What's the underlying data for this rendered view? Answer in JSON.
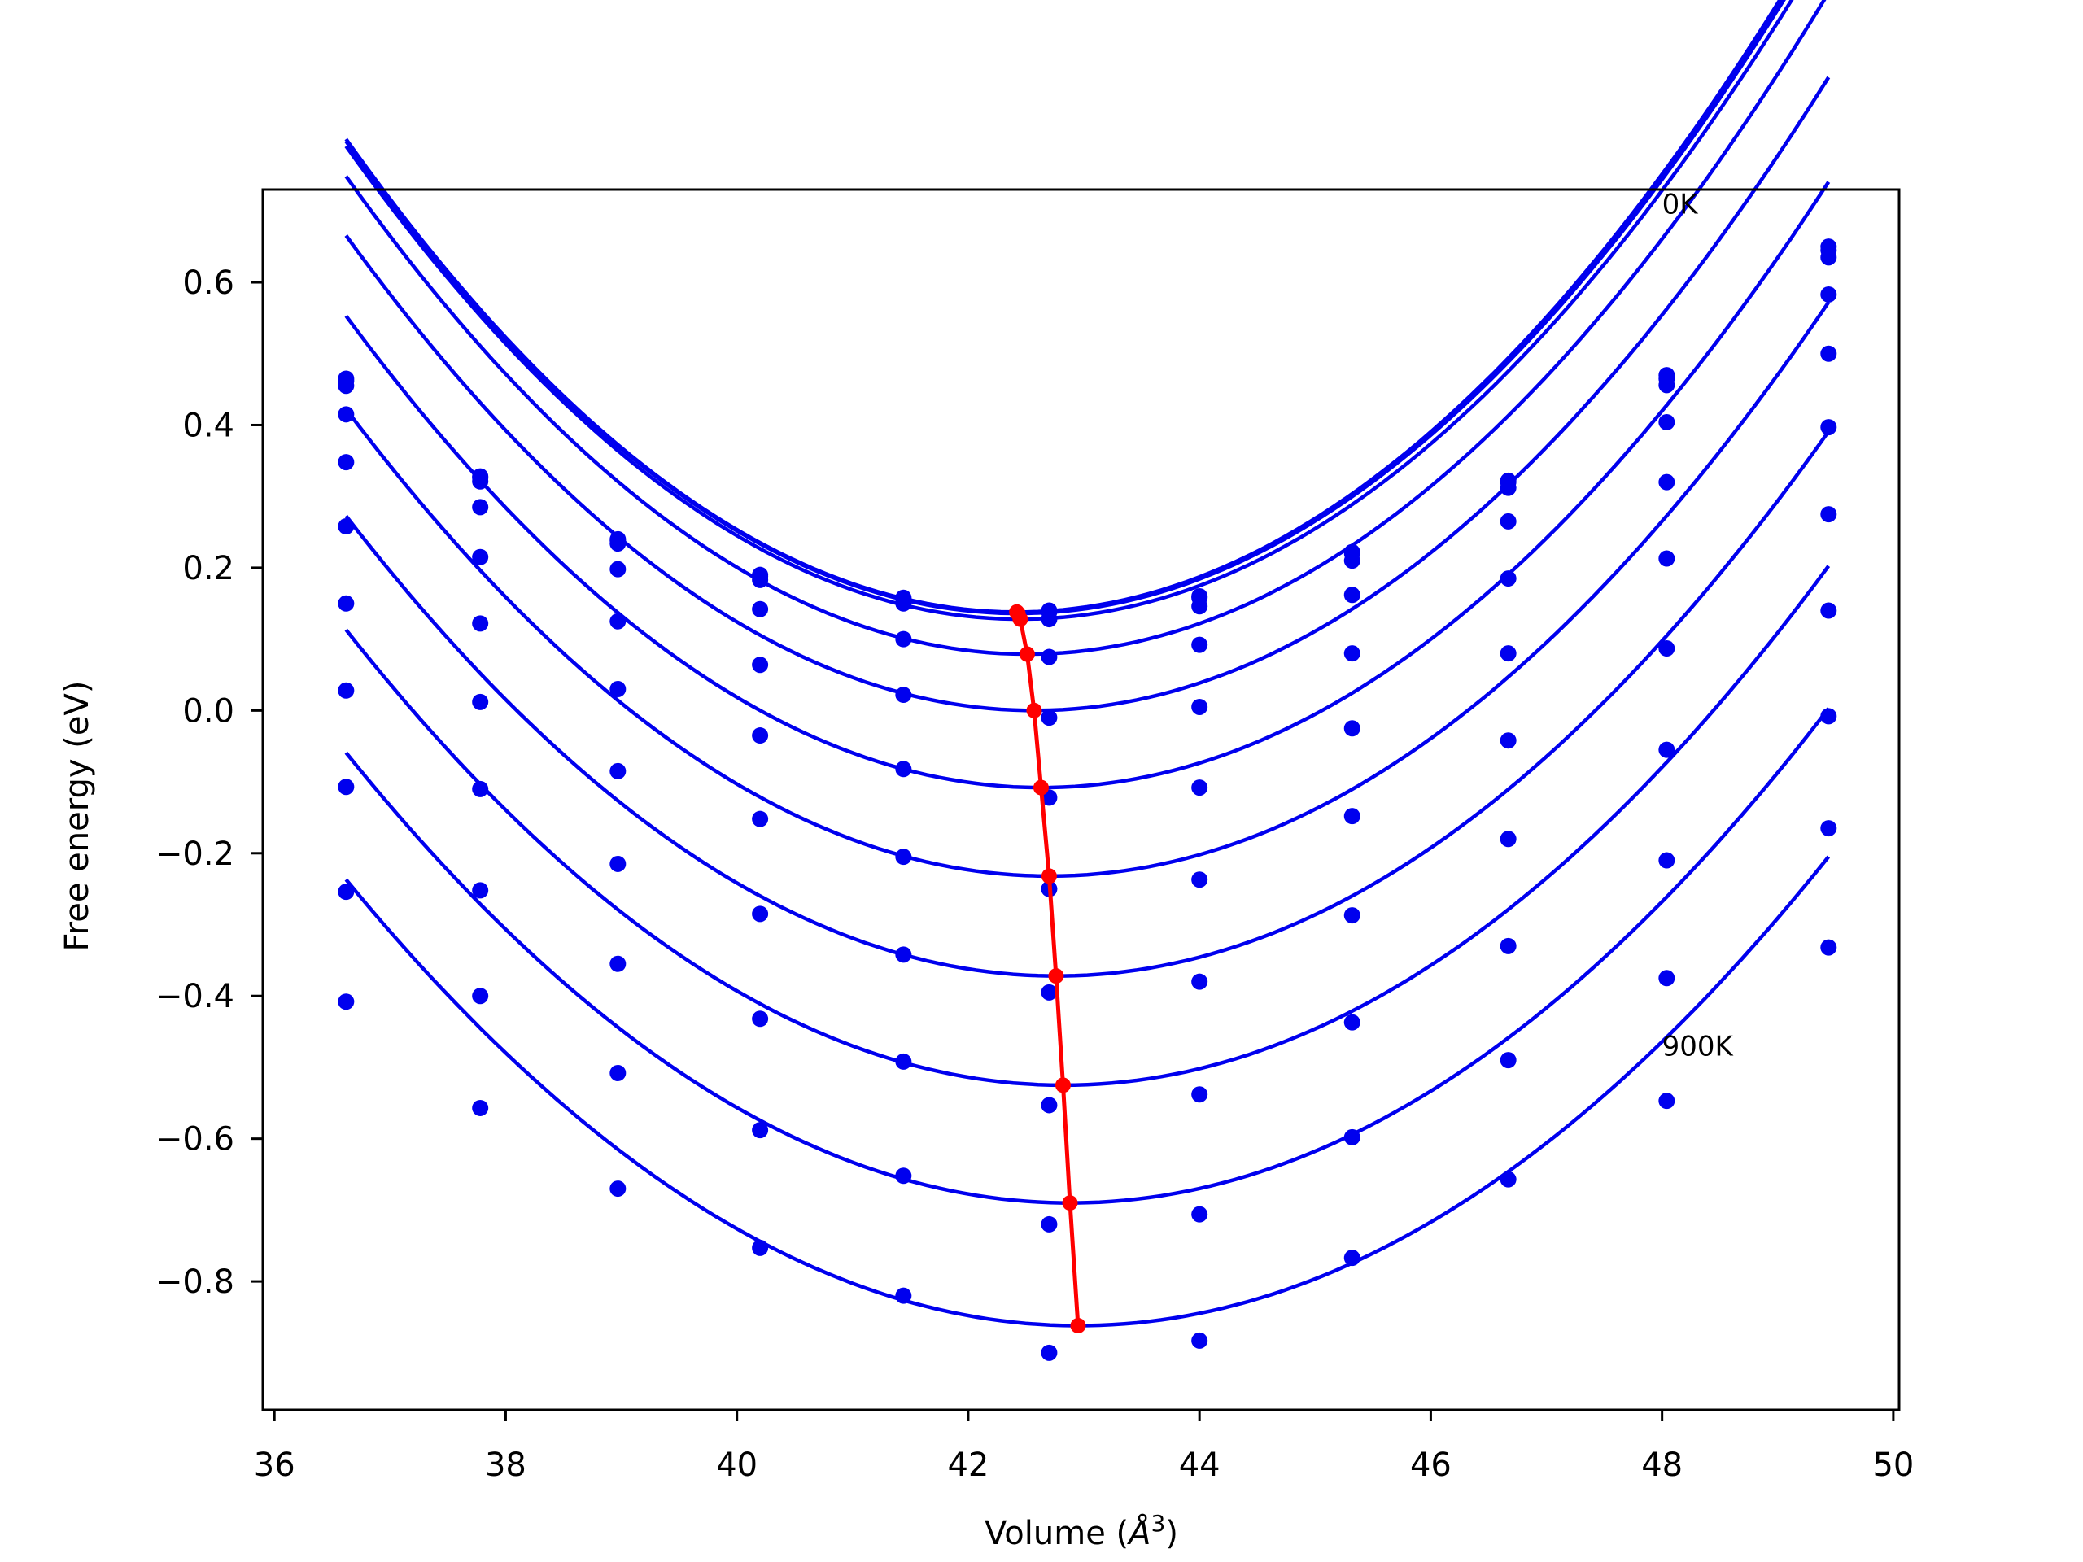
{
  "chart_data": {
    "type": "line",
    "xlabel": "Volume (",
    "xlabel_unit_symbol": "Å",
    "xlabel_unit_power": "3",
    "xlabel_suffix": ")",
    "ylabel": "Free energy (eV)",
    "xlim": [
      35.9,
      50.05
    ],
    "ylim": [
      -0.98,
      0.73
    ],
    "xticks": [
      36,
      38,
      40,
      42,
      44,
      46,
      48,
      50
    ],
    "xtick_labels": [
      "36",
      "38",
      "40",
      "42",
      "44",
      "46",
      "48",
      "50"
    ],
    "yticks": [
      0.6,
      0.4,
      0.2,
      0.0,
      -0.2,
      -0.4,
      -0.6,
      -0.8
    ],
    "ytick_labels": [
      "0.6",
      "0.4",
      "0.2",
      "0.0",
      "−0.2",
      "−0.4",
      "−0.6",
      "−0.8"
    ],
    "grid": false,
    "annotations": [
      {
        "text": "0K",
        "x": 48.0,
        "y": 0.71
      },
      {
        "text": "900K",
        "x": 48.0,
        "y": -0.47
      }
    ],
    "volumes": [
      36.62,
      37.78,
      38.97,
      40.2,
      41.44,
      42.7,
      44.0,
      45.32,
      46.67,
      48.04,
      49.44
    ],
    "series": [
      {
        "points": [
          0.465,
          0.328,
          0.24,
          0.19,
          0.158,
          0.14,
          0.16,
          0.222,
          0.322,
          0.47,
          0.65
        ],
        "fit": {
          "v0": 42.42,
          "e0": 0.138,
          "a": 0.0197
        }
      },
      {
        "points": [
          0.462,
          0.326,
          0.238,
          0.188,
          0.156,
          0.138,
          0.158,
          0.22,
          0.32,
          0.465,
          0.645
        ],
        "fit": {
          "v0": 42.43,
          "e0": 0.136,
          "a": 0.0196
        }
      },
      {
        "points": [
          0.455,
          0.321,
          0.234,
          0.183,
          0.15,
          0.128,
          0.146,
          0.21,
          0.312,
          0.456,
          0.635
        ],
        "fit": {
          "v0": 42.45,
          "e0": 0.128,
          "a": 0.0195
        }
      },
      {
        "points": [
          0.415,
          0.285,
          0.198,
          0.142,
          0.1,
          0.075,
          0.092,
          0.162,
          0.265,
          0.404,
          0.583
        ],
        "fit": {
          "v0": 42.51,
          "e0": 0.079,
          "a": 0.0193
        }
      },
      {
        "points": [
          0.348,
          0.215,
          0.125,
          0.064,
          0.022,
          -0.01,
          0.005,
          0.08,
          0.185,
          0.32,
          0.5
        ],
        "fit": {
          "v0": 42.57,
          "e0": 0.0,
          "a": 0.0188
        }
      },
      {
        "points": [
          0.258,
          0.122,
          0.03,
          -0.035,
          -0.082,
          -0.122,
          -0.108,
          -0.025,
          0.08,
          0.213,
          0.397
        ],
        "fit": {
          "v0": 42.63,
          "e0": -0.108,
          "a": 0.0183
        }
      },
      {
        "points": [
          0.15,
          0.012,
          -0.085,
          -0.152,
          -0.205,
          -0.25,
          -0.237,
          -0.148,
          -0.042,
          0.087,
          0.275
        ],
        "fit": {
          "v0": 42.7,
          "e0": -0.232,
          "a": 0.0177
        }
      },
      {
        "points": [
          0.028,
          -0.11,
          -0.215,
          -0.285,
          -0.342,
          -0.395,
          -0.38,
          -0.287,
          -0.18,
          -0.055,
          0.14
        ],
        "fit": {
          "v0": 42.76,
          "e0": -0.372,
          "a": 0.0171
        }
      },
      {
        "points": [
          -0.107,
          -0.252,
          -0.355,
          -0.432,
          -0.492,
          -0.553,
          -0.538,
          -0.437,
          -0.33,
          -0.21,
          -0.008
        ],
        "fit": {
          "v0": 42.82,
          "e0": -0.525,
          "a": 0.0166
        }
      },
      {
        "points": [
          -0.254,
          -0.4,
          -0.508,
          -0.588,
          -0.652,
          -0.72,
          -0.706,
          -0.598,
          -0.49,
          -0.375,
          -0.165
        ],
        "fit": {
          "v0": 42.88,
          "e0": -0.69,
          "a": 0.0161
        }
      },
      {
        "points": [
          -0.408,
          -0.557,
          -0.67,
          -0.753,
          -0.82,
          -0.9,
          -0.883,
          -0.767,
          -0.657,
          -0.547,
          -0.332
        ],
        "fit": {
          "v0": 42.95,
          "e0": -0.862,
          "a": 0.0156
        }
      }
    ],
    "minimum_path": {
      "x": [
        42.42,
        42.43,
        42.45,
        42.51,
        42.57,
        42.63,
        42.7,
        42.76,
        42.82,
        42.88,
        42.95
      ],
      "y": [
        0.138,
        0.136,
        0.128,
        0.079,
        0.0,
        -0.108,
        -0.232,
        -0.372,
        -0.525,
        -0.69,
        -0.862
      ]
    },
    "colors": {
      "curves": "#0000ee",
      "points": "#0000ee",
      "minimum_path": "#ff0000",
      "axes": "#000000"
    }
  }
}
